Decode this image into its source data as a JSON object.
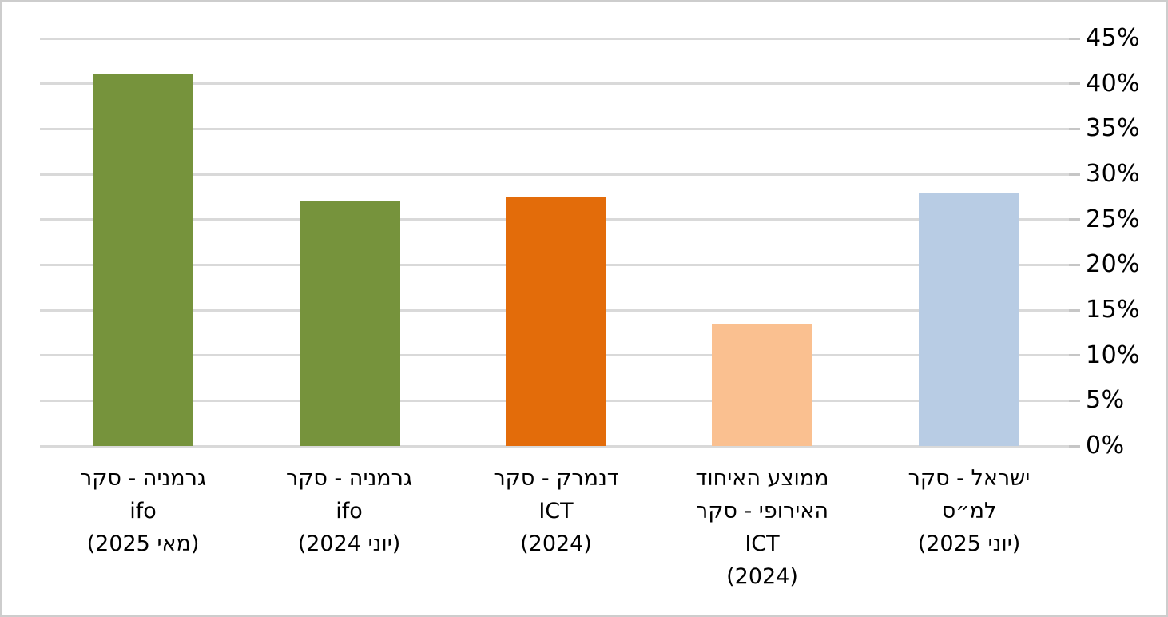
{
  "chart_data": {
    "type": "bar",
    "title": "",
    "xlabel": "",
    "ylabel": "",
    "direction": "rtl",
    "axis_side": "right",
    "grid": true,
    "legend": false,
    "ylim": [
      0,
      45
    ],
    "ytick_step": 5,
    "yticks": [
      {
        "value": 0,
        "label": "0%"
      },
      {
        "value": 5,
        "label": "5%"
      },
      {
        "value": 10,
        "label": "10%"
      },
      {
        "value": 15,
        "label": "15%"
      },
      {
        "value": 20,
        "label": "20%"
      },
      {
        "value": 25,
        "label": "25%"
      },
      {
        "value": 30,
        "label": "30%"
      },
      {
        "value": 35,
        "label": "35%"
      },
      {
        "value": 40,
        "label": "40%"
      },
      {
        "value": 45,
        "label": "45%"
      }
    ],
    "categories": [
      {
        "lines": [
          "גרמניה - סקר",
          "ifo",
          "(מאי 2025)"
        ]
      },
      {
        "lines": [
          "גרמניה - סקר",
          "ifo",
          "(יוני 2024)"
        ]
      },
      {
        "lines": [
          "דנמרק - סקר",
          "ICT",
          "(2024)"
        ]
      },
      {
        "lines": [
          "ממוצע האיחוד",
          "האירופי - סקר",
          "ICT",
          "(2024)"
        ]
      },
      {
        "lines": [
          "ישראל - סקר",
          "למ״ס",
          "(יוני 2025)"
        ]
      }
    ],
    "values": [
      41,
      27,
      27.5,
      13.5,
      28
    ],
    "unit": "%",
    "colors": {
      "bars": [
        "#76933C",
        "#76933C",
        "#E36C0A",
        "#FAC090",
        "#B8CCE4"
      ],
      "gridline": "#D9D9D9",
      "tick": "#C6C6C6",
      "axis_text": "#000000",
      "frame_border": "#CDCDCD",
      "background": "#FFFFFF"
    }
  }
}
